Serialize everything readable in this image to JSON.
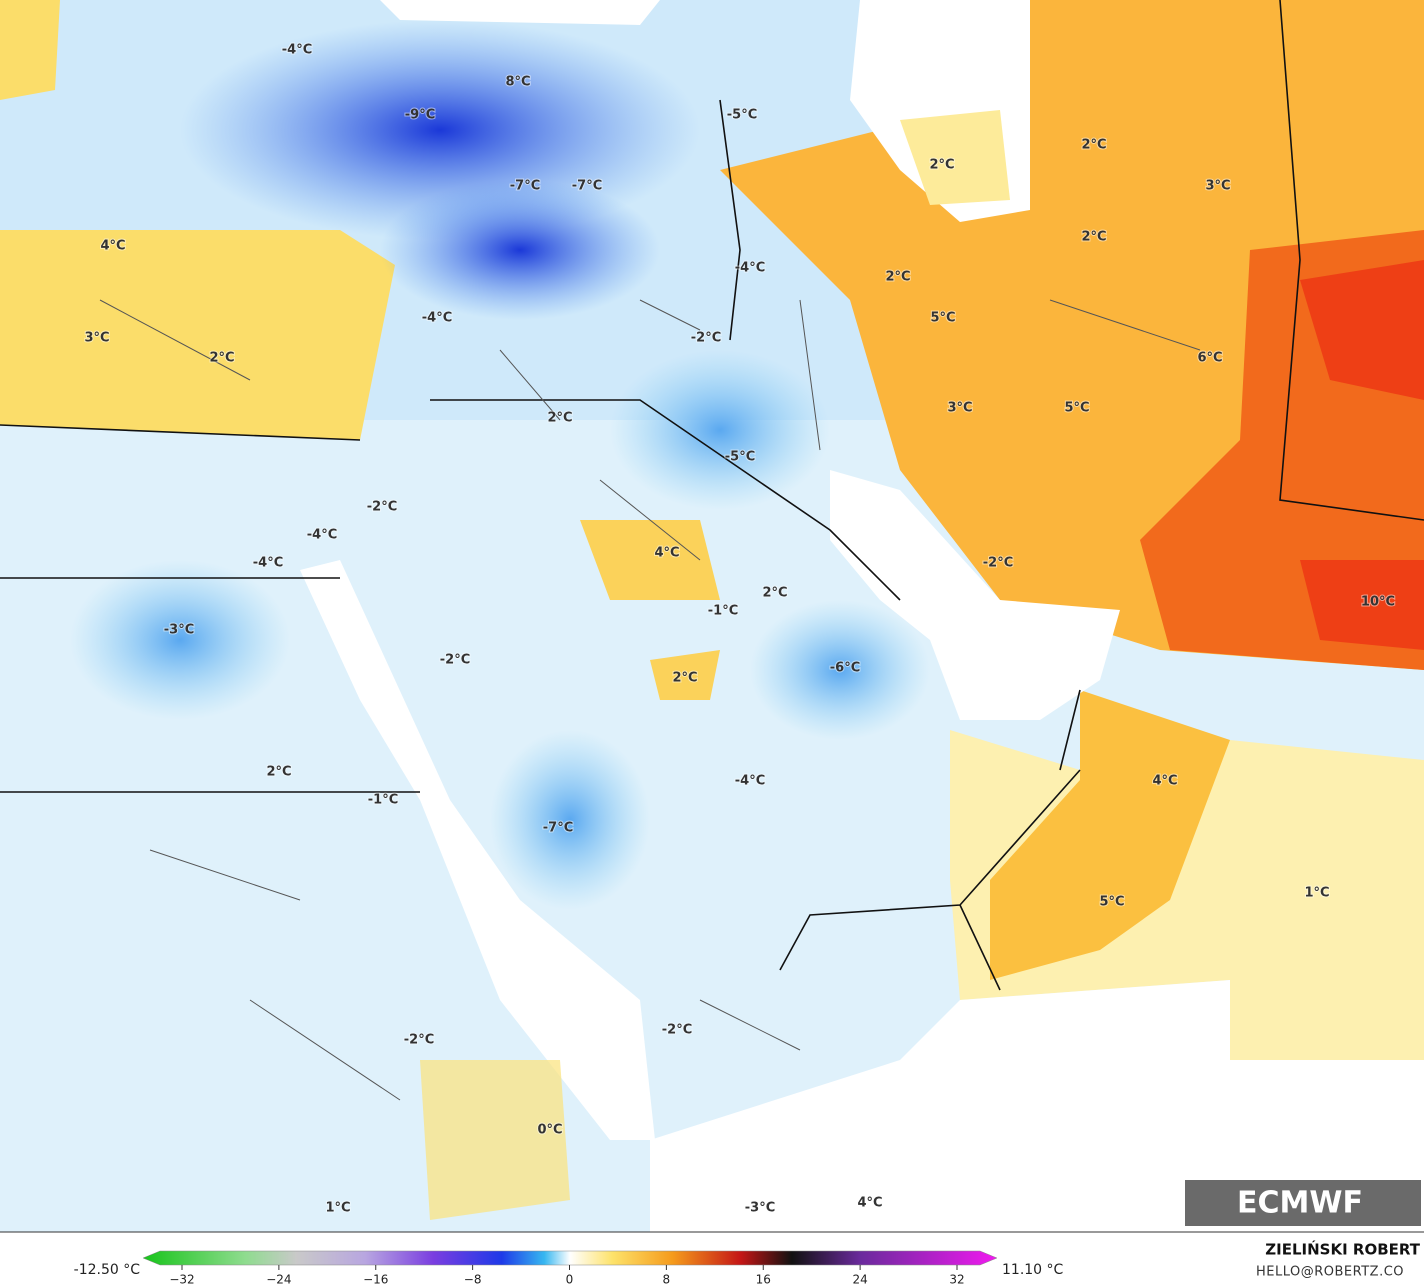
{
  "map": {
    "labels": [
      "-4°C",
      "8°C",
      "-9°C",
      "-5°C",
      "2°C",
      "2°C",
      "3°C",
      "-7°C",
      "-7°C",
      "4°C",
      "2°C",
      "-4°C",
      "2°C",
      "3°C",
      "2°C",
      "-4°C",
      "5°C",
      "-2°C",
      "6°C",
      "3°C",
      "5°C",
      "2°C",
      "-5°C",
      "-2°C",
      "-4°C",
      "4°C",
      "-4°C",
      "-2°C",
      "2°C",
      "-1°C",
      "10°C",
      "-3°C",
      "-2°C",
      "-6°C",
      "2°C",
      "4°C",
      "-4°C",
      "2°C",
      "-1°C",
      "-7°C",
      "1°C",
      "5°C",
      "-2°C",
      "-2°C",
      "0°C",
      "1°C",
      "-3°C",
      "4°C"
    ]
  },
  "colorbar": {
    "min_label": "-12.50 °C",
    "max_label": "11.10 °C",
    "ticks": [
      {
        "value": -32,
        "label": "−32"
      },
      {
        "value": -24,
        "label": "−24"
      },
      {
        "value": -16,
        "label": "−16"
      },
      {
        "value": -8,
        "label": "−8"
      },
      0,
      8,
      16,
      24,
      32
    ]
  },
  "credits": {
    "author": "ZIELIŃSKI ROBERT",
    "email": "HELLO@ROBERTZ.CO"
  },
  "logo": "ECMWF"
}
